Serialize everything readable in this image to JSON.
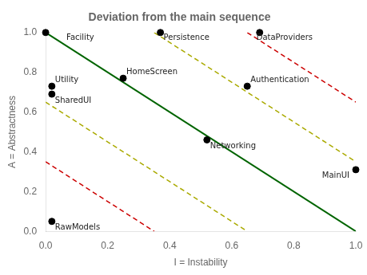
{
  "chart_data": {
    "type": "scatter",
    "title": "Deviation from the main sequence",
    "xlabel": "I = Instability",
    "ylabel": "A = Abstractness",
    "xlim": [
      0,
      1
    ],
    "ylim": [
      0,
      1
    ],
    "xticks": [
      {
        "value": 0,
        "label": "0.0"
      },
      0.2,
      0.4,
      0.6,
      0.8,
      {
        "value": 1,
        "label": "1.0"
      }
    ],
    "yticks": [
      {
        "value": 0,
        "label": "0.0"
      },
      0.2,
      0.4,
      0.6,
      0.8,
      {
        "value": 1,
        "label": "1.0"
      }
    ],
    "grid": false,
    "series": [
      {
        "type": "line",
        "color": "#aaaa00",
        "line_style": "dashed",
        "x": [
          0,
          0.65
        ],
        "values": [
          0.65,
          0
        ]
      },
      {
        "type": "line",
        "color": "#aaaa00",
        "line_style": "dashed",
        "x": [
          0.35,
          1
        ],
        "values": [
          1,
          0.35
        ]
      },
      {
        "type": "line",
        "color": "#cc0000",
        "line_style": "dashed",
        "x": [
          0,
          0.35
        ],
        "values": [
          0.35,
          0
        ]
      },
      {
        "type": "line",
        "color": "#cc0000",
        "line_style": "dashed",
        "x": [
          0.65,
          1
        ],
        "values": [
          1,
          0.65
        ]
      },
      {
        "type": "line",
        "color": "#006400",
        "line_style": "solid",
        "x": [
          0,
          1
        ],
        "values": [
          1,
          0
        ]
      },
      {
        "type": "scatter",
        "color": "black",
        "marker": "circle",
        "x": [
          0.0,
          0.37,
          0.69,
          0.02,
          0.02,
          0.25,
          0.65,
          0.52,
          1.0,
          0.02
        ],
        "values": [
          1.0,
          1.0,
          1.0,
          0.73,
          0.69,
          0.77,
          0.73,
          0.46,
          0.31,
          0.05
        ],
        "labels": [
          "Facility",
          "Persistence",
          "DataProviders",
          "Utility",
          "SharedUI",
          "HomeScreen",
          "Authentication",
          "Networking",
          "MainUI",
          "RawModels"
        ]
      }
    ]
  }
}
